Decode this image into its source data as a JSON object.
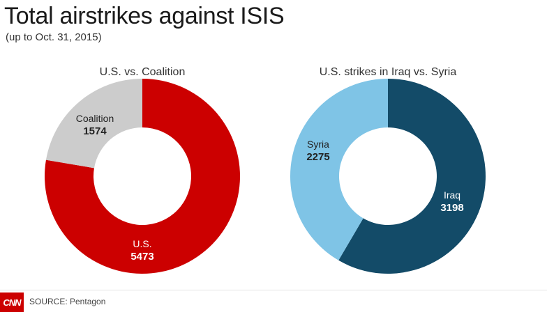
{
  "title": "Total airstrikes against ISIS",
  "subtitle": "(up to Oct. 31, 2015)",
  "chart_data": [
    {
      "type": "pie",
      "donut": true,
      "title": "U.S. vs. Coalition",
      "slices": [
        {
          "label": "U.S.",
          "value": 5473,
          "color": "#cc0000",
          "text_color": "#ffffff"
        },
        {
          "label": "Coalition",
          "value": 1574,
          "color": "#cccccc",
          "text_color": "#222222"
        }
      ]
    },
    {
      "type": "pie",
      "donut": true,
      "title": "U.S. strikes in Iraq vs. Syria",
      "slices": [
        {
          "label": "Iraq",
          "value": 3198,
          "color": "#134b68",
          "text_color": "#ffffff"
        },
        {
          "label": "Syria",
          "value": 2275,
          "color": "#7fc4e6",
          "text_color": "#222222"
        }
      ]
    }
  ],
  "footer": {
    "logo_text": "CNN",
    "source": "SOURCE: Pentagon"
  }
}
